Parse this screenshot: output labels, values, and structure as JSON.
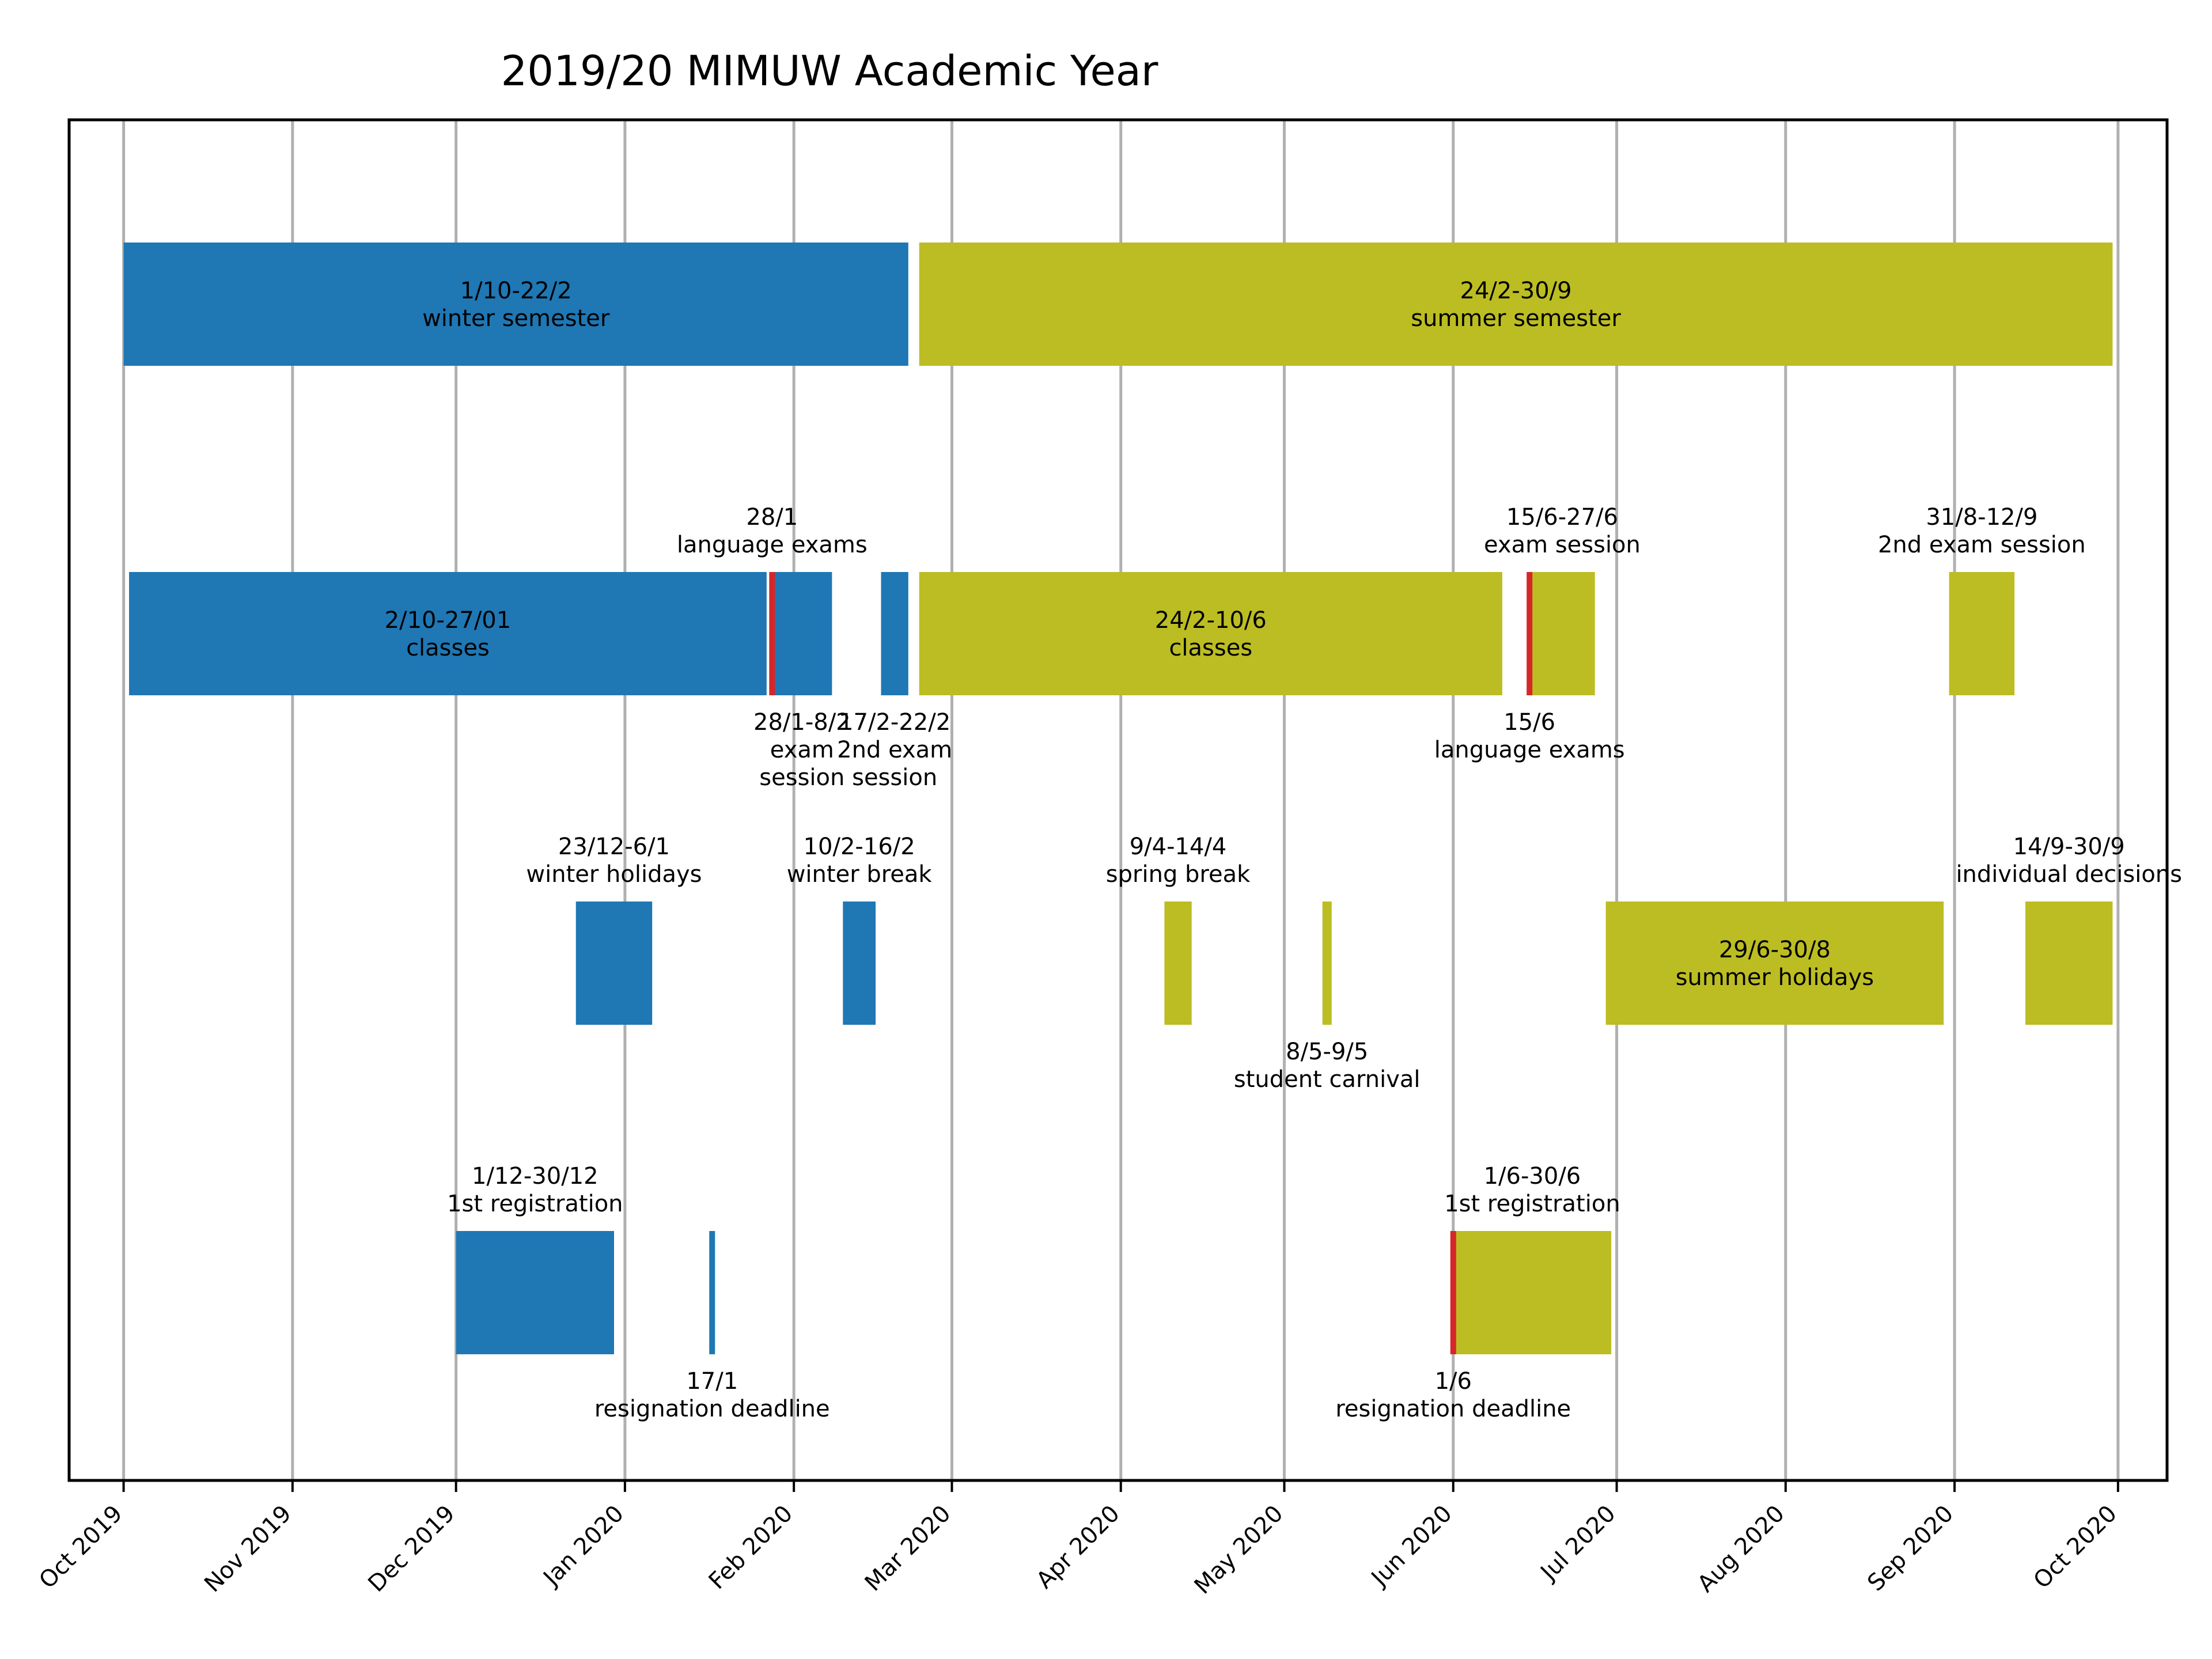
{
  "chart_data": {
    "type": "timeline",
    "title": "2019/20 MIMUW Academic Year",
    "xlabel": "",
    "ylabel": "",
    "x_range": [
      "2019-09-21",
      "2020-10-10"
    ],
    "grid": "vertical",
    "colors": {
      "winter": "#1f77b4",
      "summer": "#bcbd22",
      "marker": "#d62728",
      "grid": "#b0b0b0"
    },
    "x_ticks": [
      {
        "date": "2019-10-01",
        "label": "Oct 2019"
      },
      {
        "date": "2019-11-01",
        "label": "Nov 2019"
      },
      {
        "date": "2019-12-01",
        "label": "Dec 2019"
      },
      {
        "date": "2020-01-01",
        "label": "Jan 2020"
      },
      {
        "date": "2020-02-01",
        "label": "Feb 2020"
      },
      {
        "date": "2020-03-01",
        "label": "Mar 2020"
      },
      {
        "date": "2020-04-01",
        "label": "Apr 2020"
      },
      {
        "date": "2020-05-01",
        "label": "May 2020"
      },
      {
        "date": "2020-06-01",
        "label": "Jun 2020"
      },
      {
        "date": "2020-07-01",
        "label": "Jul 2020"
      },
      {
        "date": "2020-08-01",
        "label": "Aug 2020"
      },
      {
        "date": "2020-09-01",
        "label": "Sep 2020"
      },
      {
        "date": "2020-10-01",
        "label": "Oct 2020"
      }
    ],
    "bars": [
      {
        "row": 0,
        "start": "2019-10-01",
        "end": "2020-02-22",
        "color": "winter",
        "label": [
          "1/10-22/2",
          "winter semester"
        ],
        "label_pos": "inside"
      },
      {
        "row": 0,
        "start": "2020-02-24",
        "end": "2020-09-30",
        "color": "summer",
        "label": [
          "24/2-30/9",
          "summer semester"
        ],
        "label_pos": "inside"
      },
      {
        "row": 1,
        "start": "2019-10-02",
        "end": "2020-01-27",
        "color": "winter",
        "label": [
          "2/10-27/01",
          "classes"
        ],
        "label_pos": "inside"
      },
      {
        "row": 1,
        "start": "2020-01-28",
        "end": "2020-02-08",
        "color": "winter",
        "label": [
          "28/1-8/2",
          "exam",
          "session"
        ],
        "label_pos": "below"
      },
      {
        "row": 1,
        "start": "2020-02-17",
        "end": "2020-02-22",
        "color": "winter",
        "label": [
          "17/2-22/2",
          "2nd exam",
          "session"
        ],
        "label_pos": "below"
      },
      {
        "row": 1,
        "start": "2020-02-24",
        "end": "2020-06-10",
        "color": "summer",
        "label": [
          "24/2-10/6",
          "classes"
        ],
        "label_pos": "inside"
      },
      {
        "row": 1,
        "start": "2020-06-15",
        "end": "2020-06-27",
        "color": "summer",
        "label": [
          "15/6-27/6",
          "exam session"
        ],
        "label_pos": "above"
      },
      {
        "row": 1,
        "start": "2020-08-31",
        "end": "2020-09-12",
        "color": "summer",
        "label": [
          "31/8-12/9",
          "2nd exam session"
        ],
        "label_pos": "above"
      },
      {
        "row": 2,
        "start": "2019-12-23",
        "end": "2020-01-06",
        "color": "winter",
        "label": [
          "23/12-6/1",
          "winter holidays"
        ],
        "label_pos": "above"
      },
      {
        "row": 2,
        "start": "2020-02-10",
        "end": "2020-02-16",
        "color": "winter",
        "label": [
          "10/2-16/2",
          "winter break"
        ],
        "label_pos": "above"
      },
      {
        "row": 2,
        "start": "2020-04-09",
        "end": "2020-04-14",
        "color": "summer",
        "label": [
          "9/4-14/4",
          "spring break"
        ],
        "label_pos": "above"
      },
      {
        "row": 2,
        "start": "2020-05-08",
        "end": "2020-05-09",
        "color": "summer",
        "label": [
          "8/5-9/5",
          "student carnival"
        ],
        "label_pos": "below"
      },
      {
        "row": 2,
        "start": "2020-06-29",
        "end": "2020-08-30",
        "color": "summer",
        "label": [
          "29/6-30/8",
          "summer holidays"
        ],
        "label_pos": "inside"
      },
      {
        "row": 2,
        "start": "2020-09-14",
        "end": "2020-09-30",
        "color": "summer",
        "label": [
          "14/9-30/9",
          "individual decisions"
        ],
        "label_pos": "above"
      },
      {
        "row": 3,
        "start": "2019-12-01",
        "end": "2019-12-30",
        "color": "winter",
        "label": [
          "1/12-30/12",
          "1st registration"
        ],
        "label_pos": "above"
      },
      {
        "row": 3,
        "start": "2020-06-01",
        "end": "2020-06-30",
        "color": "summer",
        "label": [
          "1/6-30/6",
          "1st registration"
        ],
        "label_pos": "above"
      }
    ],
    "markers": [
      {
        "row": 1,
        "date": "2020-01-28",
        "color": "marker",
        "label": [
          "28/1",
          "language exams"
        ],
        "label_pos": "above"
      },
      {
        "row": 1,
        "date": "2020-06-15",
        "color": "marker",
        "label": [
          "15/6",
          "language exams"
        ],
        "label_pos": "below"
      },
      {
        "row": 3,
        "date": "2020-01-17",
        "color": "winter",
        "label": [
          "17/1",
          "resignation deadline"
        ],
        "label_pos": "below"
      },
      {
        "row": 3,
        "date": "2020-06-01",
        "color": "marker",
        "label": [
          "1/6",
          "resignation deadline"
        ],
        "label_pos": "below"
      }
    ]
  }
}
